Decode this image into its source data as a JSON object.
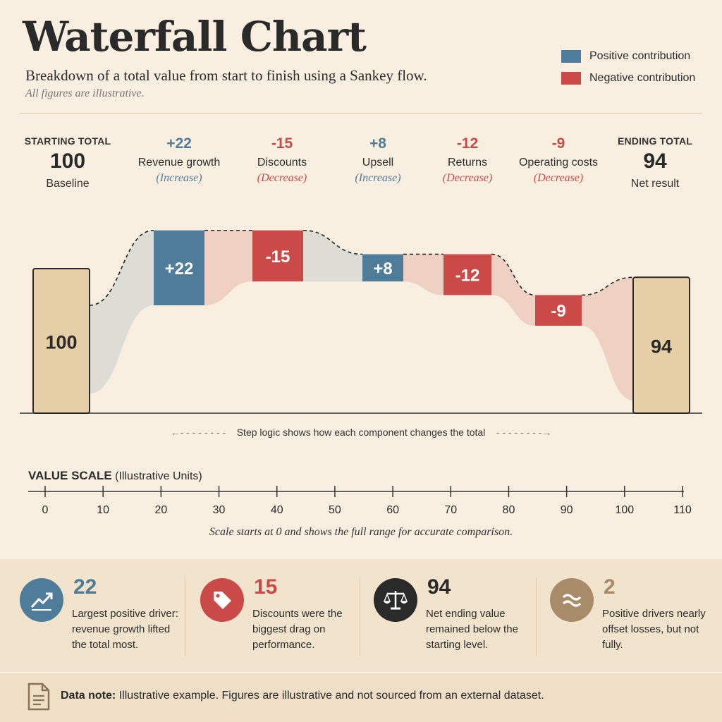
{
  "header": {
    "title": "Waterfall Chart",
    "subtitle": "Breakdown of a total value from start to finish using a Sankey flow.",
    "note": "All figures are illustrative."
  },
  "legend": {
    "positive": "Positive contribution",
    "negative": "Negative contribution"
  },
  "colors": {
    "positive": "#4f7d99",
    "negative": "#c94a47",
    "total": "#e6cfa6",
    "background": "#f8efe0"
  },
  "steps_header": {
    "start": {
      "caption": "STARTING TOTAL",
      "value": "100",
      "sub": "Baseline"
    },
    "end": {
      "caption": "ENDING TOTAL",
      "value": "94",
      "sub": "Net result"
    },
    "items": [
      {
        "delta": "+22",
        "label": "Revenue growth",
        "kind": "(Increase)"
      },
      {
        "delta": "-15",
        "label": "Discounts",
        "kind": "(Decrease)"
      },
      {
        "delta": "+8",
        "label": "Upsell",
        "kind": "(Increase)"
      },
      {
        "delta": "-12",
        "label": "Returns",
        "kind": "(Decrease)"
      },
      {
        "delta": "-9",
        "label": "Operating costs",
        "kind": "(Decrease)"
      }
    ]
  },
  "chart_data": {
    "type": "waterfall",
    "categories": [
      "Starting total",
      "Revenue growth",
      "Discounts",
      "Upsell",
      "Returns",
      "Operating costs",
      "Ending total"
    ],
    "start": 100,
    "end": 94,
    "changes": [
      22,
      -15,
      8,
      -12,
      -9
    ],
    "bar_labels": [
      "100",
      "+22",
      "-15",
      "+8",
      "-12",
      "-9",
      "94"
    ]
  },
  "step_logic": "Step logic shows how each component changes the total",
  "value_scale": {
    "title": "VALUE SCALE",
    "units": "(Illustrative Units)",
    "ticks": [
      0,
      10,
      20,
      30,
      40,
      50,
      60,
      70,
      80,
      90,
      100,
      110
    ],
    "note": "Scale starts at 0 and shows the full range for accurate comparison."
  },
  "insights": [
    {
      "value": "22",
      "text": "Largest positive driver: revenue growth lifted the total most.",
      "icon": "trend-up-icon",
      "color": "#4f7d99"
    },
    {
      "value": "15",
      "text": "Discounts were the biggest drag on performance.",
      "icon": "tag-icon",
      "color": "#c94a47"
    },
    {
      "value": "94",
      "text": "Net ending value remained below the starting level.",
      "icon": "scales-icon",
      "color": "#2a2a2a"
    },
    {
      "value": "2",
      "text": "Positive drivers nearly offset losses, but not fully.",
      "icon": "approx-icon",
      "color": "#a88c6a"
    }
  ],
  "footer": {
    "label": "Data note:",
    "text": "Illustrative example. Figures are illustrative and not sourced from an external dataset."
  }
}
